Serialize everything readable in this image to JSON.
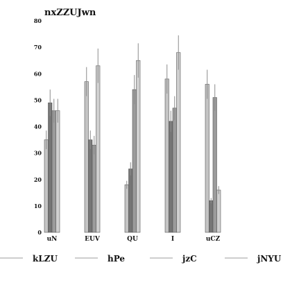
{
  "chart_data": {
    "type": "bar",
    "title": "nxZZUJwn",
    "xlabel": "",
    "ylabel": "",
    "ylim": [
      0,
      80
    ],
    "yticks": [
      0,
      10,
      20,
      30,
      40,
      50,
      60,
      70,
      80
    ],
    "categories": [
      "uN",
      "EUV",
      "QU",
      "I",
      "uCZ"
    ],
    "series": [
      {
        "name": "kLZU",
        "color": "#c4c4c4",
        "values": [
          35,
          57,
          18,
          58,
          56
        ],
        "errors": [
          3.5,
          5.5,
          1.5,
          5.5,
          5.5
        ]
      },
      {
        "name": "hPe",
        "color": "#767676",
        "values": [
          49,
          35,
          24,
          42,
          12
        ],
        "errors": [
          5,
          3.5,
          2.5,
          4,
          1
        ]
      },
      {
        "name": "jzC",
        "color": "#9b9b9b",
        "values": [
          46,
          33,
          54,
          47,
          51
        ],
        "errors": [
          4.5,
          3.5,
          5.5,
          4.5,
          5
        ]
      },
      {
        "name": "jNYU",
        "color": "#d0d0d0",
        "values": [
          46,
          63,
          65,
          68,
          16
        ],
        "errors": [
          4.5,
          6.5,
          6.5,
          6.5,
          1.5
        ]
      }
    ],
    "grid": false,
    "legend_position": "bottom"
  }
}
